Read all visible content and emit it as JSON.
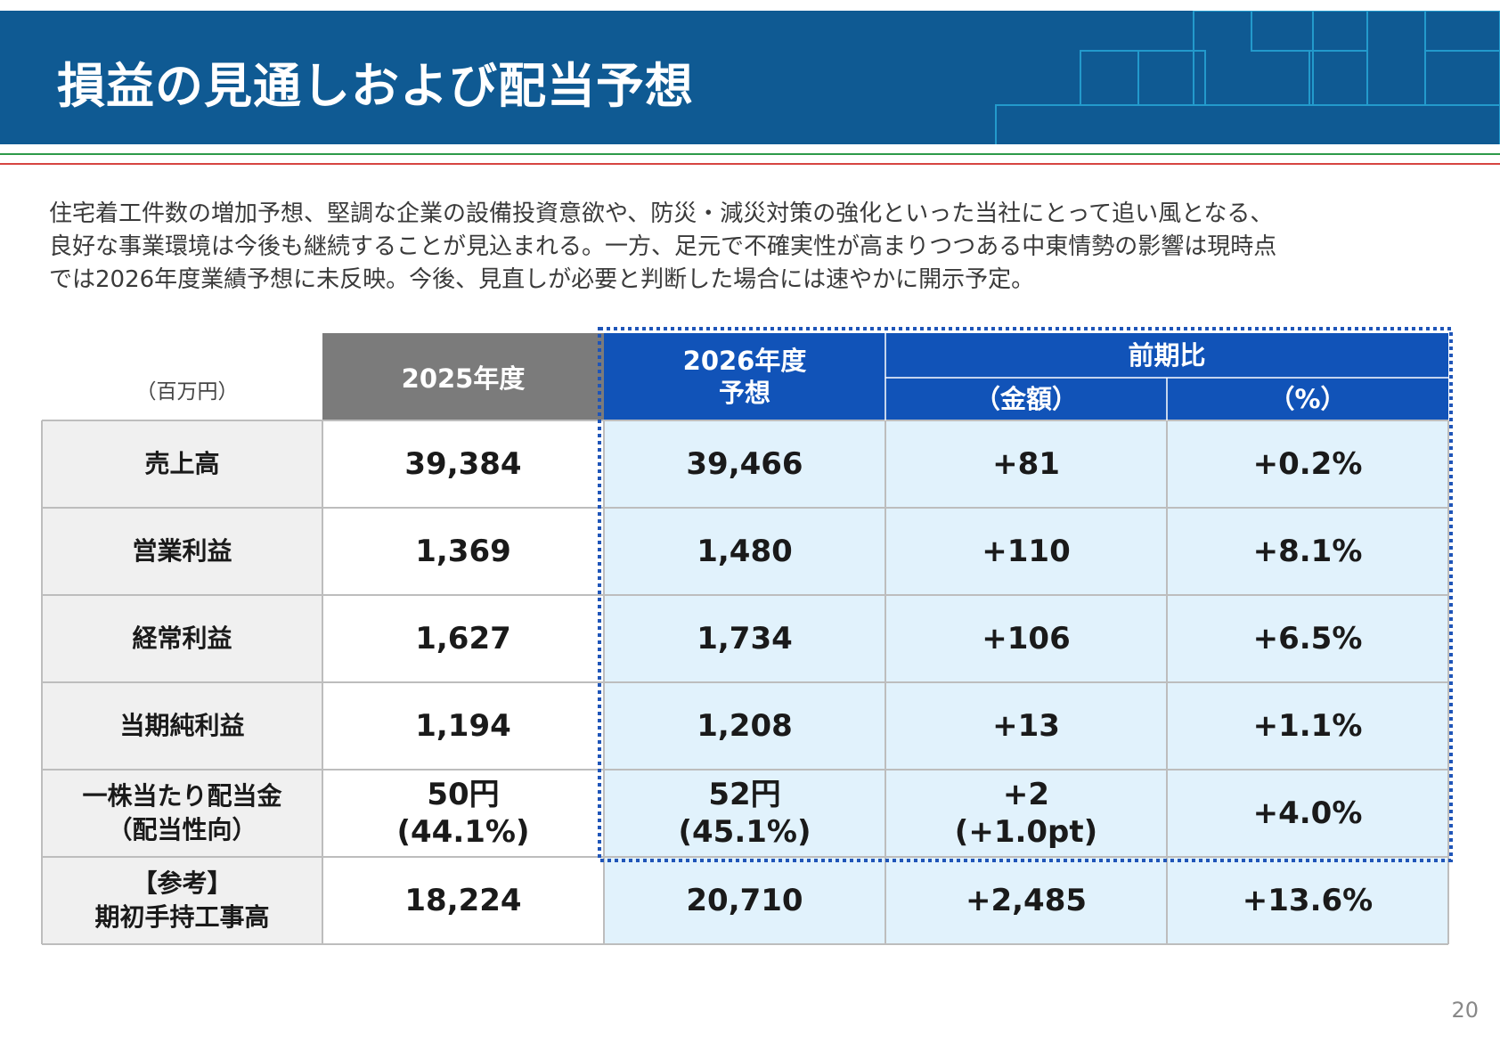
{
  "header": {
    "title": "損益の見通しおよび配当予想"
  },
  "intro": {
    "lines": [
      "住宅着工件数の増加予想、堅調な企業の設備投資意欲や、防災・減災対策の強化といった当社にとって追い風となる、",
      "良好な事業環境は今後も継続することが見込まれる。一方、足元で不確実性が高まりつつある中東情勢の影響は現時点",
      "では2026年度業績予想に未反映。今後、見直しが必要と判断した場合には速やかに開示予定。"
    ]
  },
  "table": {
    "unit": "（百万円）",
    "headers": {
      "fy2025": "2025年度",
      "fy2026_line1": "2026年度",
      "fy2026_line2": "予想",
      "yoy": "前期比",
      "amount": "（金額）",
      "percent": "（%）"
    },
    "rows": [
      {
        "label": [
          "売上高"
        ],
        "fy2025": [
          "39,384"
        ],
        "fy2026": [
          "39,466"
        ],
        "diff": [
          "+81"
        ],
        "pct": [
          "+0.2%"
        ]
      },
      {
        "label": [
          "営業利益"
        ],
        "fy2025": [
          "1,369"
        ],
        "fy2026": [
          "1,480"
        ],
        "diff": [
          "+110"
        ],
        "pct": [
          "+8.1%"
        ]
      },
      {
        "label": [
          "経常利益"
        ],
        "fy2025": [
          "1,627"
        ],
        "fy2026": [
          "1,734"
        ],
        "diff": [
          "+106"
        ],
        "pct": [
          "+6.5%"
        ]
      },
      {
        "label": [
          "当期純利益"
        ],
        "fy2025": [
          "1,194"
        ],
        "fy2026": [
          "1,208"
        ],
        "diff": [
          "+13"
        ],
        "pct": [
          "+1.1%"
        ]
      },
      {
        "label": [
          "一株当たり配当金",
          "（配当性向）"
        ],
        "fy2025": [
          "50円",
          "(44.1%)"
        ],
        "fy2026": [
          "52円",
          "(45.1%)"
        ],
        "diff": [
          "+2",
          "(+1.0pt)"
        ],
        "pct": [
          "+4.0%"
        ]
      },
      {
        "label": [
          "【参考】",
          "期初手持工事高"
        ],
        "fy2025": [
          "18,224"
        ],
        "fy2026": [
          "20,710"
        ],
        "diff": [
          "+2,485"
        ],
        "pct": [
          "+13.6%"
        ]
      }
    ]
  },
  "footer": {
    "page_number": "20"
  },
  "colors": {
    "header_bg": "#0f5a93",
    "header_gray": "#7b7b7b",
    "header_blue": "#1153b8",
    "forecast_bg": "#e1f2fc",
    "label_bg": "#f0f0f0",
    "accent_green": "#2e9a4a",
    "accent_red": "#d64541"
  }
}
